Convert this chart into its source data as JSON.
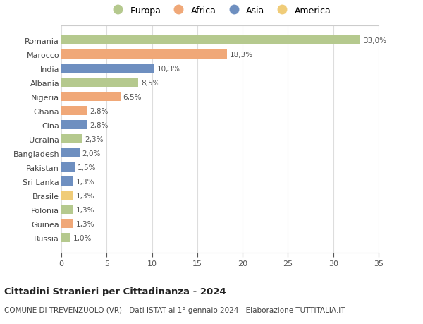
{
  "countries": [
    "Russia",
    "Guinea",
    "Polonia",
    "Brasile",
    "Sri Lanka",
    "Pakistan",
    "Bangladesh",
    "Ucraina",
    "Cina",
    "Ghana",
    "Nigeria",
    "Albania",
    "India",
    "Marocco",
    "Romania"
  ],
  "values": [
    1.0,
    1.3,
    1.3,
    1.3,
    1.3,
    1.5,
    2.0,
    2.3,
    2.8,
    2.8,
    6.5,
    8.5,
    10.3,
    18.3,
    33.0
  ],
  "labels": [
    "1,0%",
    "1,3%",
    "1,3%",
    "1,3%",
    "1,3%",
    "1,5%",
    "2,0%",
    "2,3%",
    "2,8%",
    "2,8%",
    "6,5%",
    "8,5%",
    "10,3%",
    "18,3%",
    "33,0%"
  ],
  "continents": [
    "Europa",
    "Africa",
    "Europa",
    "America",
    "Asia",
    "Asia",
    "Asia",
    "Europa",
    "Asia",
    "Africa",
    "Africa",
    "Europa",
    "Asia",
    "Africa",
    "Europa"
  ],
  "continent_colors": {
    "Europa": "#b5c98e",
    "Africa": "#f0a878",
    "Asia": "#6e8fc0",
    "America": "#f0cc78"
  },
  "legend_order": [
    "Europa",
    "Africa",
    "Asia",
    "America"
  ],
  "title": "Cittadini Stranieri per Cittadinanza - 2024",
  "subtitle": "COMUNE DI TREVENZUOLO (VR) - Dati ISTAT al 1° gennaio 2024 - Elaborazione TUTTITALIA.IT",
  "xlim": [
    0,
    35
  ],
  "xticks": [
    0,
    5,
    10,
    15,
    20,
    25,
    30,
    35
  ],
  "background_color": "#ffffff",
  "grid_color": "#dddddd"
}
